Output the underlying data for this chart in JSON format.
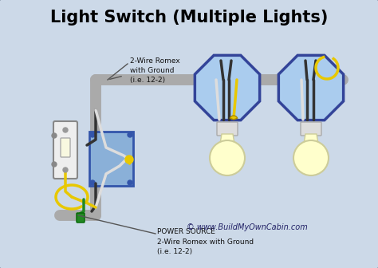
{
  "title": "Light Switch (Multiple Lights)",
  "bg_color": "#ccd9e8",
  "border_color": "#8899aa",
  "title_color": "#000000",
  "title_fontsize": 15,
  "label_top": "2-Wire Romex\nwith Ground\n(i.e. 12-2)",
  "label_bottom": "POWER SOURCE\n2-Wire Romex with Ground\n(i.e. 12-2)",
  "watermark": "© www.BuildMyOwnCabin.com",
  "wire_gray": "#aaaaaa",
  "wire_black": "#333333",
  "wire_white": "#dddddd",
  "wire_yellow": "#e8c800",
  "wire_green": "#228822",
  "box_blue_face": "#8ab0d8",
  "box_blue_edge": "#3355aa",
  "octagon_face": "#aaccee",
  "octagon_edge": "#334499",
  "bulb_color": "#ffffcc",
  "bulb_edge": "#cccc99",
  "fixture_color": "#dddddd",
  "switch_face": "#eeeeee",
  "switch_edge": "#888888"
}
